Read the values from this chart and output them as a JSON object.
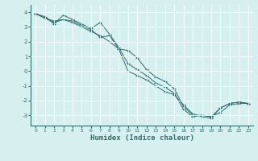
{
  "line1_x": [
    0,
    1,
    2,
    3,
    4,
    5,
    6,
    7,
    8,
    9,
    10,
    11,
    12,
    13,
    14,
    15,
    16,
    17,
    18,
    19,
    20,
    21,
    22,
    23
  ],
  "line1_y": [
    3.9,
    3.6,
    3.3,
    3.5,
    3.4,
    3.1,
    2.8,
    2.3,
    2.4,
    1.5,
    1.4,
    0.9,
    0.1,
    -0.4,
    -0.7,
    -1.2,
    -2.4,
    -3.0,
    -3.0,
    -3.1,
    -2.5,
    -2.2,
    -2.1,
    -2.2
  ],
  "line2_x": [
    0,
    1,
    2,
    3,
    4,
    5,
    6,
    7,
    8,
    9,
    10,
    11,
    12,
    13,
    14,
    15,
    16,
    17,
    18,
    19,
    20,
    21,
    22,
    23
  ],
  "line2_y": [
    3.9,
    3.7,
    3.2,
    3.8,
    3.5,
    3.2,
    2.9,
    3.3,
    2.5,
    1.6,
    0.5,
    0.1,
    -0.3,
    -0.8,
    -1.1,
    -1.5,
    -2.6,
    -3.1,
    -3.0,
    -3.1,
    -2.8,
    -2.3,
    -2.2,
    -2.2
  ],
  "line3_x": [
    0,
    1,
    2,
    3,
    4,
    5,
    6,
    7,
    8,
    9,
    10,
    11,
    12,
    13,
    14,
    15,
    16,
    17,
    18,
    19,
    20,
    21,
    22,
    23
  ],
  "line3_y": [
    3.9,
    3.6,
    3.4,
    3.5,
    3.3,
    3.0,
    2.7,
    2.4,
    2.0,
    1.5,
    0.0,
    -0.3,
    -0.6,
    -1.0,
    -1.4,
    -1.6,
    -2.3,
    -2.9,
    -3.1,
    -3.2,
    -2.5,
    -2.2,
    -2.1,
    -2.2
  ],
  "line_color": "#2d6e6e",
  "bg_color": "#d6f0f0",
  "grid_color": "#ffffff",
  "xlabel": "Humidex (Indice chaleur)",
  "xlim": [
    -0.5,
    23.5
  ],
  "ylim": [
    -3.7,
    4.5
  ],
  "yticks": [
    -3,
    -2,
    -1,
    0,
    1,
    2,
    3,
    4
  ],
  "xticks": [
    0,
    1,
    2,
    3,
    4,
    5,
    6,
    7,
    8,
    9,
    10,
    11,
    12,
    13,
    14,
    15,
    16,
    17,
    18,
    19,
    20,
    21,
    22,
    23
  ]
}
